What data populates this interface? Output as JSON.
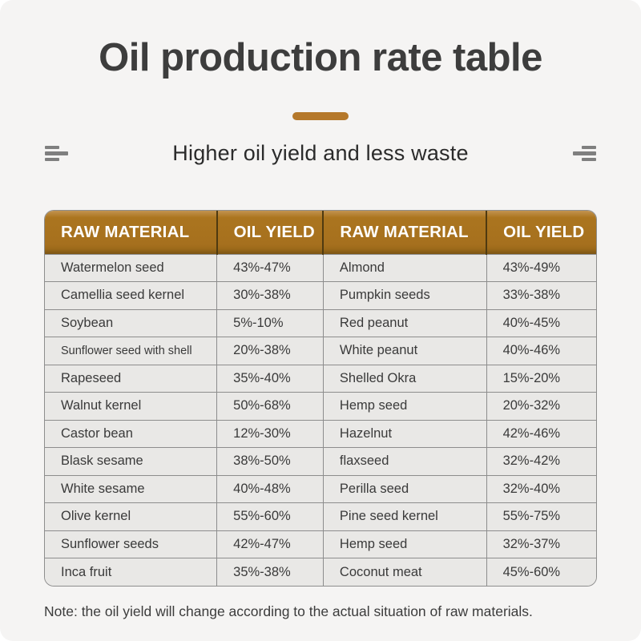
{
  "page": {
    "title": "Oil production rate table",
    "subtitle": "Higher oil yield and less waste",
    "note": "Note: the oil yield will change according to the actual situation of raw materials."
  },
  "colors": {
    "accent_gold": "#b5782a",
    "header_gradient_top": "#c29350",
    "header_main": "#a6701e",
    "header_gradient_bottom": "#7c5414",
    "row_background": "#e9e8e6",
    "page_background": "#f5f4f3",
    "table_border": "#8d8d8d",
    "title_text": "#3d3d3d",
    "header_text": "#ffffff"
  },
  "icons": {
    "left": "align-left-lines-icon",
    "right": "align-right-lines-icon"
  },
  "table": {
    "headers": [
      "RAW MATERIAL",
      "OIL YIELD",
      "RAW MATERIAL",
      "OIL YIELD"
    ],
    "rows": [
      [
        "Watermelon seed",
        "43%-47%",
        "Almond",
        "43%-49%"
      ],
      [
        "Camellia seed kernel",
        "30%-38%",
        "Pumpkin seeds",
        "33%-38%"
      ],
      [
        "Soybean",
        "5%-10%",
        "Red peanut",
        "40%-45%"
      ],
      [
        "Sunflower seed with shell",
        "20%-38%",
        "White peanut",
        "40%-46%"
      ],
      [
        "Rapeseed",
        "35%-40%",
        "Shelled Okra",
        "15%-20%"
      ],
      [
        "Walnut kernel",
        "50%-68%",
        "Hemp seed",
        "20%-32%"
      ],
      [
        "Castor bean",
        "12%-30%",
        "Hazelnut",
        "42%-46%"
      ],
      [
        "Blask sesame",
        "38%-50%",
        "flaxseed",
        "32%-42%"
      ],
      [
        "White sesame",
        "40%-48%",
        "Perilla seed",
        "32%-40%"
      ],
      [
        "Olive kernel",
        "55%-60%",
        "Pine seed kernel",
        "55%-75%"
      ],
      [
        "Sunflower seeds",
        "42%-47%",
        "Hemp seed",
        "32%-37%"
      ],
      [
        "Inca fruit",
        "35%-38%",
        "Coconut meat",
        "45%-60%"
      ]
    ]
  },
  "chart_data": {
    "type": "table",
    "title": "Oil production rate table",
    "subtitle": "Higher oil yield and less waste",
    "columns": [
      "RAW MATERIAL",
      "OIL YIELD",
      "RAW MATERIAL",
      "OIL YIELD"
    ],
    "rows": [
      [
        "Watermelon seed",
        "43%-47%",
        "Almond",
        "43%-49%"
      ],
      [
        "Camellia seed kernel",
        "30%-38%",
        "Pumpkin seeds",
        "33%-38%"
      ],
      [
        "Soybean",
        "5%-10%",
        "Red peanut",
        "40%-45%"
      ],
      [
        "Sunflower seed with shell",
        "20%-38%",
        "White peanut",
        "40%-46%"
      ],
      [
        "Rapeseed",
        "35%-40%",
        "Shelled Okra",
        "15%-20%"
      ],
      [
        "Walnut kernel",
        "50%-68%",
        "Hemp seed",
        "20%-32%"
      ],
      [
        "Castor bean",
        "12%-30%",
        "Hazelnut",
        "42%-46%"
      ],
      [
        "Blask sesame",
        "38%-50%",
        "flaxseed",
        "32%-42%"
      ],
      [
        "White sesame",
        "40%-48%",
        "Perilla seed",
        "32%-40%"
      ],
      [
        "Olive kernel",
        "55%-60%",
        "Pine seed kernel",
        "55%-75%"
      ],
      [
        "Sunflower seeds",
        "42%-47%",
        "Hemp seed",
        "32%-37%"
      ],
      [
        "Inca fruit",
        "35%-38%",
        "Coconut meat",
        "45%-60%"
      ]
    ],
    "note": "Note: the oil yield will change according to the actual situation of raw materials."
  }
}
